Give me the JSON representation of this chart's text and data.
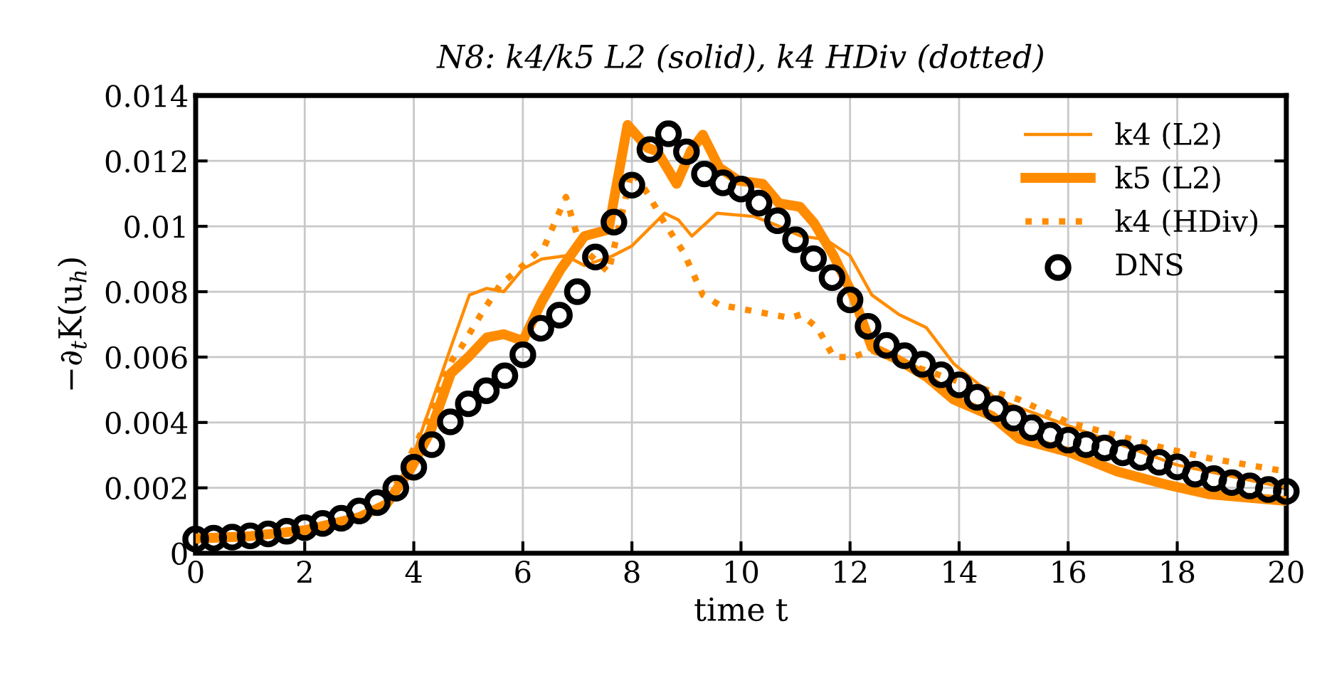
{
  "chart_data": {
    "type": "line",
    "title": "N8: k4/k5 L2 (solid), k4 HDiv (dotted)",
    "xlabel": "time t",
    "ylabel": "−∂$_{t}$K(u$_{h}$)",
    "xlim": [
      0,
      20
    ],
    "xticks": [
      0,
      2,
      4,
      6,
      8,
      10,
      12,
      14,
      16,
      18,
      20
    ],
    "ylim": [
      0,
      0.014
    ],
    "yticks": [
      0,
      0.002,
      0.004,
      0.006,
      0.008,
      0.01,
      0.012,
      0.014
    ],
    "grid": true,
    "legend": "top right",
    "series": [
      {
        "name": "k4 (L2)",
        "color": "#ff8c00",
        "line_style": "solid",
        "marker": "none",
        "x": [
          0,
          1,
          2,
          3,
          3.5,
          3.95,
          4.68,
          5.02,
          5.34,
          5.65,
          6.0,
          6.35,
          6.79,
          7.13,
          7.65,
          8.0,
          8.6,
          8.85,
          9.1,
          9.56,
          10.25,
          10.7,
          11.1,
          11.55,
          12.0,
          12.4,
          12.9,
          13.4,
          13.9,
          14.7,
          16.0,
          18.0,
          20.0
        ],
        "values": [
          0.00045,
          0.00052,
          0.0007,
          0.0011,
          0.0015,
          0.0028,
          0.0063,
          0.0079,
          0.0081,
          0.008,
          0.0087,
          0.009,
          0.0091,
          0.0088,
          0.0091,
          0.0094,
          0.0104,
          0.0102,
          0.0097,
          0.0104,
          0.0103,
          0.01,
          0.0097,
          0.0096,
          0.0091,
          0.0079,
          0.0073,
          0.0069,
          0.0058,
          0.0047,
          0.0039,
          0.0027,
          0.002
        ]
      },
      {
        "name": "k5 (L2)",
        "color": "#ff8c00",
        "line_style": "solid",
        "marker": "none",
        "x": [
          0,
          1,
          2,
          3,
          3.5,
          3.95,
          4.3,
          4.68,
          5.0,
          5.34,
          5.65,
          6.0,
          6.35,
          6.7,
          7.13,
          7.57,
          7.92,
          8.29,
          8.46,
          8.82,
          9.08,
          9.3,
          9.6,
          9.95,
          10.4,
          10.7,
          11.08,
          11.34,
          11.7,
          12.05,
          12.4,
          12.9,
          13.4,
          13.9,
          14.6,
          15.1,
          16.0,
          16.9,
          17.8,
          18.6,
          20.0
        ],
        "values": [
          0.00045,
          0.00052,
          0.0007,
          0.0011,
          0.0015,
          0.0026,
          0.0037,
          0.0055,
          0.006,
          0.0066,
          0.0067,
          0.0065,
          0.0077,
          0.0087,
          0.0097,
          0.0099,
          0.0131,
          0.0124,
          0.0123,
          0.0113,
          0.0123,
          0.0128,
          0.0118,
          0.0114,
          0.0113,
          0.0107,
          0.0106,
          0.0101,
          0.0091,
          0.0079,
          0.0063,
          0.0059,
          0.0054,
          0.0047,
          0.0042,
          0.0035,
          0.0031,
          0.0025,
          0.0021,
          0.0018,
          0.0016
        ]
      },
      {
        "name": "k4 (HDiv)",
        "color": "#ff8c00",
        "line_style": "dotted",
        "marker": "none",
        "x": [
          0,
          1,
          2,
          3,
          3.5,
          4.2,
          4.7,
          4.87,
          5.23,
          5.58,
          6.0,
          6.4,
          6.79,
          7.05,
          7.57,
          8.0,
          8.29,
          8.6,
          8.95,
          9.3,
          9.6,
          10.25,
          10.9,
          11.1,
          11.4,
          11.7,
          12.05,
          12.4,
          13.2,
          13.9,
          15.1,
          16.0,
          16.9,
          17.8,
          18.6,
          20.0
        ],
        "values": [
          0.00045,
          0.00052,
          0.0007,
          0.0011,
          0.0015,
          0.0039,
          0.0059,
          0.0063,
          0.0073,
          0.0082,
          0.0088,
          0.0094,
          0.0109,
          0.0094,
          0.0086,
          0.0117,
          0.011,
          0.0101,
          0.0092,
          0.0079,
          0.0076,
          0.0074,
          0.0072,
          0.0073,
          0.0069,
          0.006,
          0.006,
          0.0062,
          0.0057,
          0.0053,
          0.0047,
          0.004,
          0.0036,
          0.0032,
          0.0029,
          0.0025
        ]
      },
      {
        "name": "DNS",
        "color": "#000000",
        "type": "scatter",
        "marker": "circle",
        "x": [
          0,
          0.33,
          0.67,
          1,
          1.33,
          1.67,
          2,
          2.33,
          2.67,
          3,
          3.33,
          3.67,
          4,
          4.33,
          4.67,
          5,
          5.33,
          5.67,
          6,
          6.33,
          6.67,
          7,
          7.33,
          7.67,
          8,
          8.33,
          8.67,
          9,
          9.33,
          9.67,
          10,
          10.33,
          10.67,
          11,
          11.33,
          11.67,
          12,
          12.33,
          12.67,
          13,
          13.33,
          13.67,
          14,
          14.33,
          14.67,
          15,
          15.33,
          15.67,
          16,
          16.33,
          16.67,
          17,
          17.33,
          17.67,
          18,
          18.33,
          18.67,
          19,
          19.33,
          19.67,
          20
        ],
        "values": [
          0.00043,
          0.00046,
          0.00049,
          0.00053,
          0.00059,
          0.00067,
          0.00078,
          0.00091,
          0.00107,
          0.00129,
          0.00155,
          0.00199,
          0.00263,
          0.00332,
          0.00402,
          0.00457,
          0.00497,
          0.00543,
          0.00607,
          0.00688,
          0.00728,
          0.008,
          0.00906,
          0.01013,
          0.01126,
          0.01235,
          0.01283,
          0.01228,
          0.0116,
          0.01133,
          0.01114,
          0.01071,
          0.01017,
          0.00959,
          0.00901,
          0.00843,
          0.00775,
          0.00694,
          0.00636,
          0.00604,
          0.00578,
          0.00546,
          0.00515,
          0.00477,
          0.00442,
          0.00413,
          0.00384,
          0.00361,
          0.00346,
          0.00332,
          0.00322,
          0.00307,
          0.00293,
          0.00278,
          0.00264,
          0.00242,
          0.00228,
          0.00216,
          0.00206,
          0.00195,
          0.00189
        ]
      }
    ]
  }
}
